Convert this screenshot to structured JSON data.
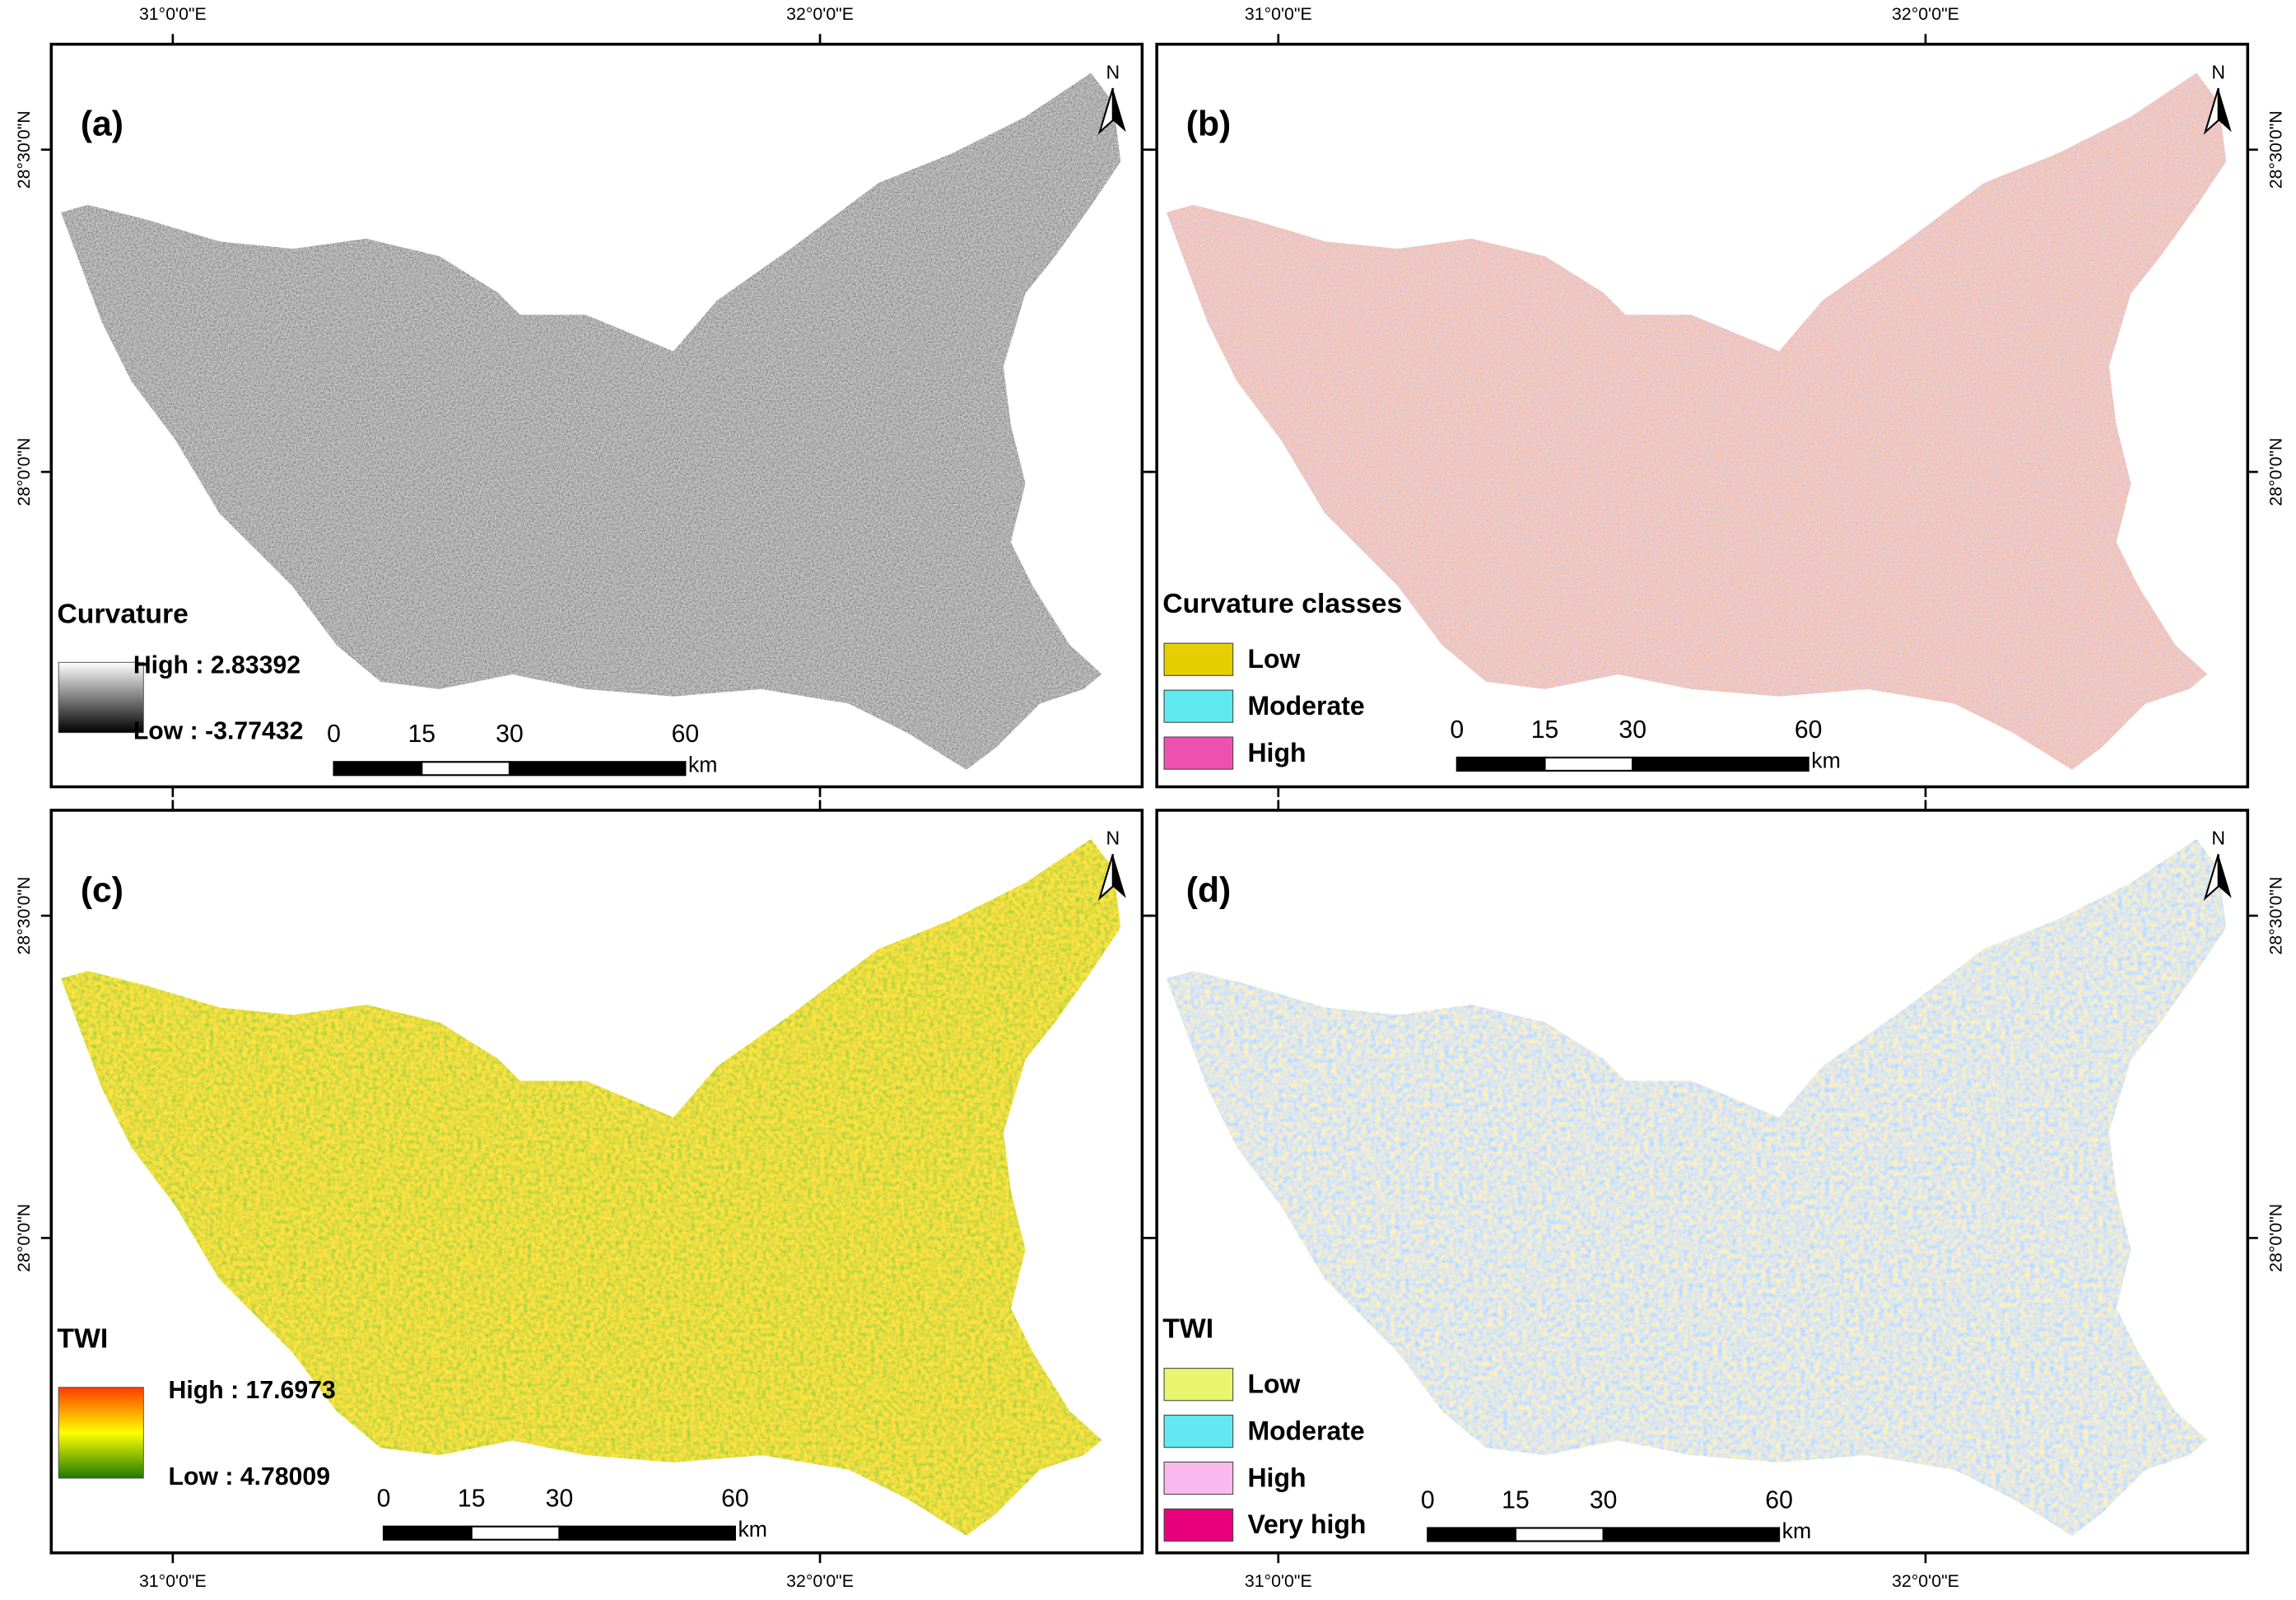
{
  "north_label": "N",
  "panels": [
    {
      "label": "(a)",
      "longitudes": [
        "31°0'0\"E",
        "32°0'0\"E"
      ],
      "latitudes": [
        "28°30'0\"N",
        "28°0'0\"N"
      ],
      "legend": {
        "title": "Curvature",
        "ramp": [
          "#ffffff",
          "#000000"
        ],
        "high": "High : 2.83392",
        "low": "Low : -3.77432"
      },
      "scale_bar": {
        "ticks": [
          0,
          15,
          30,
          60
        ],
        "unit": "km"
      }
    },
    {
      "label": "(b)",
      "longitudes": [
        "31°0'0\"E",
        "32°0'0\"E"
      ],
      "latitudes": [
        "28°30'0\"N",
        "28°0'0\"N"
      ],
      "legend": {
        "title": "Curvature classes",
        "items": [
          {
            "name": "Low",
            "color": "#e6cf00"
          },
          {
            "name": "Moderate",
            "color": "#5ee8f0"
          },
          {
            "name": "High",
            "color": "#f050b0"
          }
        ]
      },
      "scale_bar": {
        "ticks": [
          0,
          15,
          30,
          60
        ],
        "unit": "km"
      }
    },
    {
      "label": "(c)",
      "longitudes": [
        "31°0'0\"E",
        "32°0'0\"E"
      ],
      "latitudes": [
        "28°30'0\"N",
        "28°0'0\"N"
      ],
      "legend": {
        "title": "TWI",
        "ramp": [
          "#ff3b00",
          "#ffff00",
          "#1e7a00"
        ],
        "high": "High : 17.6973",
        "low": "Low : 4.78009"
      },
      "scale_bar": {
        "ticks": [
          0,
          15,
          30,
          60
        ],
        "unit": "km"
      }
    },
    {
      "label": "(d)",
      "longitudes": [
        "31°0'0\"E",
        "32°0'0\"E"
      ],
      "latitudes": [
        "28°30'0\"N",
        "28°0'0\"N"
      ],
      "legend": {
        "title": "TWI",
        "items": [
          {
            "name": "Low",
            "color": "#eaf56e"
          },
          {
            "name": "Moderate",
            "color": "#62e8f2"
          },
          {
            "name": "High",
            "color": "#fbb8ef"
          },
          {
            "name": "Very high",
            "color": "#e8007a"
          }
        ]
      },
      "scale_bar": {
        "ticks": [
          0,
          15,
          30,
          60
        ],
        "unit": "km"
      }
    }
  ]
}
